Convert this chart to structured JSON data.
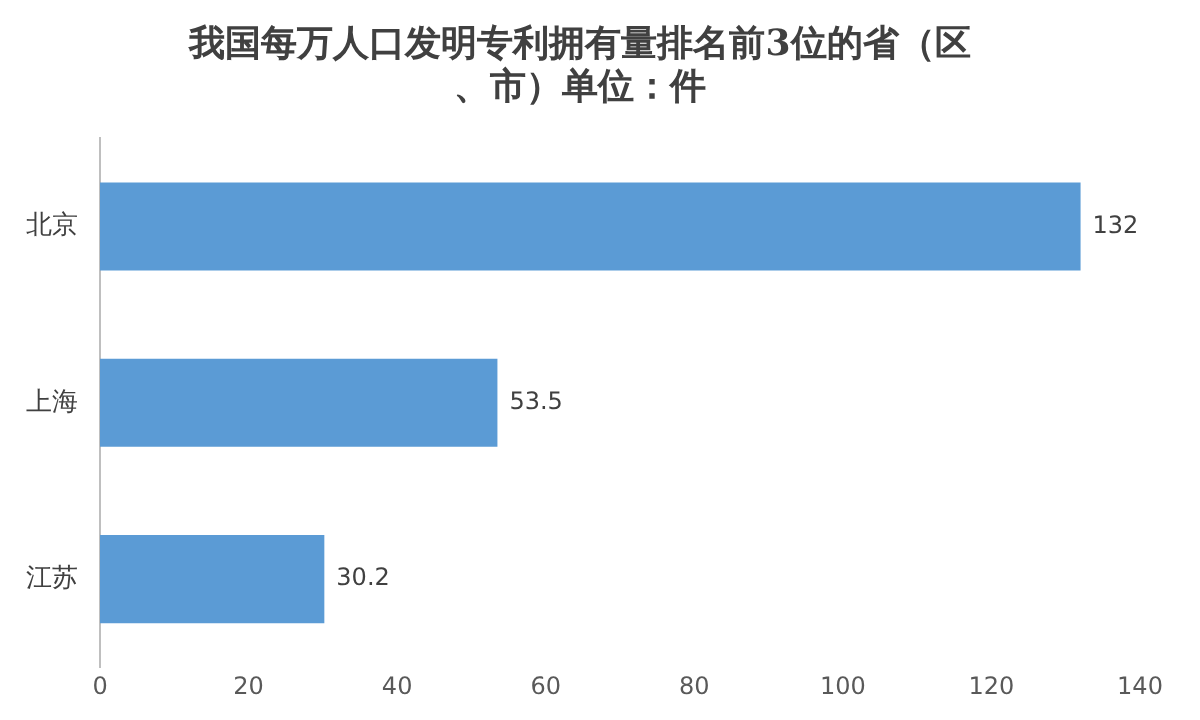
{
  "chart_data": {
    "type": "bar",
    "orientation": "horizontal",
    "title": "我国每万人口发明专利拥有量排名前3位的省（区、市）单位：件",
    "categories": [
      "北京",
      "上海",
      "江苏"
    ],
    "values": [
      132,
      53.5,
      30.2
    ],
    "color": "#5b9bd5",
    "xlim": [
      0,
      140
    ],
    "xticks": [
      0,
      20,
      40,
      60,
      80,
      100,
      120,
      140
    ],
    "grid": false,
    "data_labels": true
  }
}
